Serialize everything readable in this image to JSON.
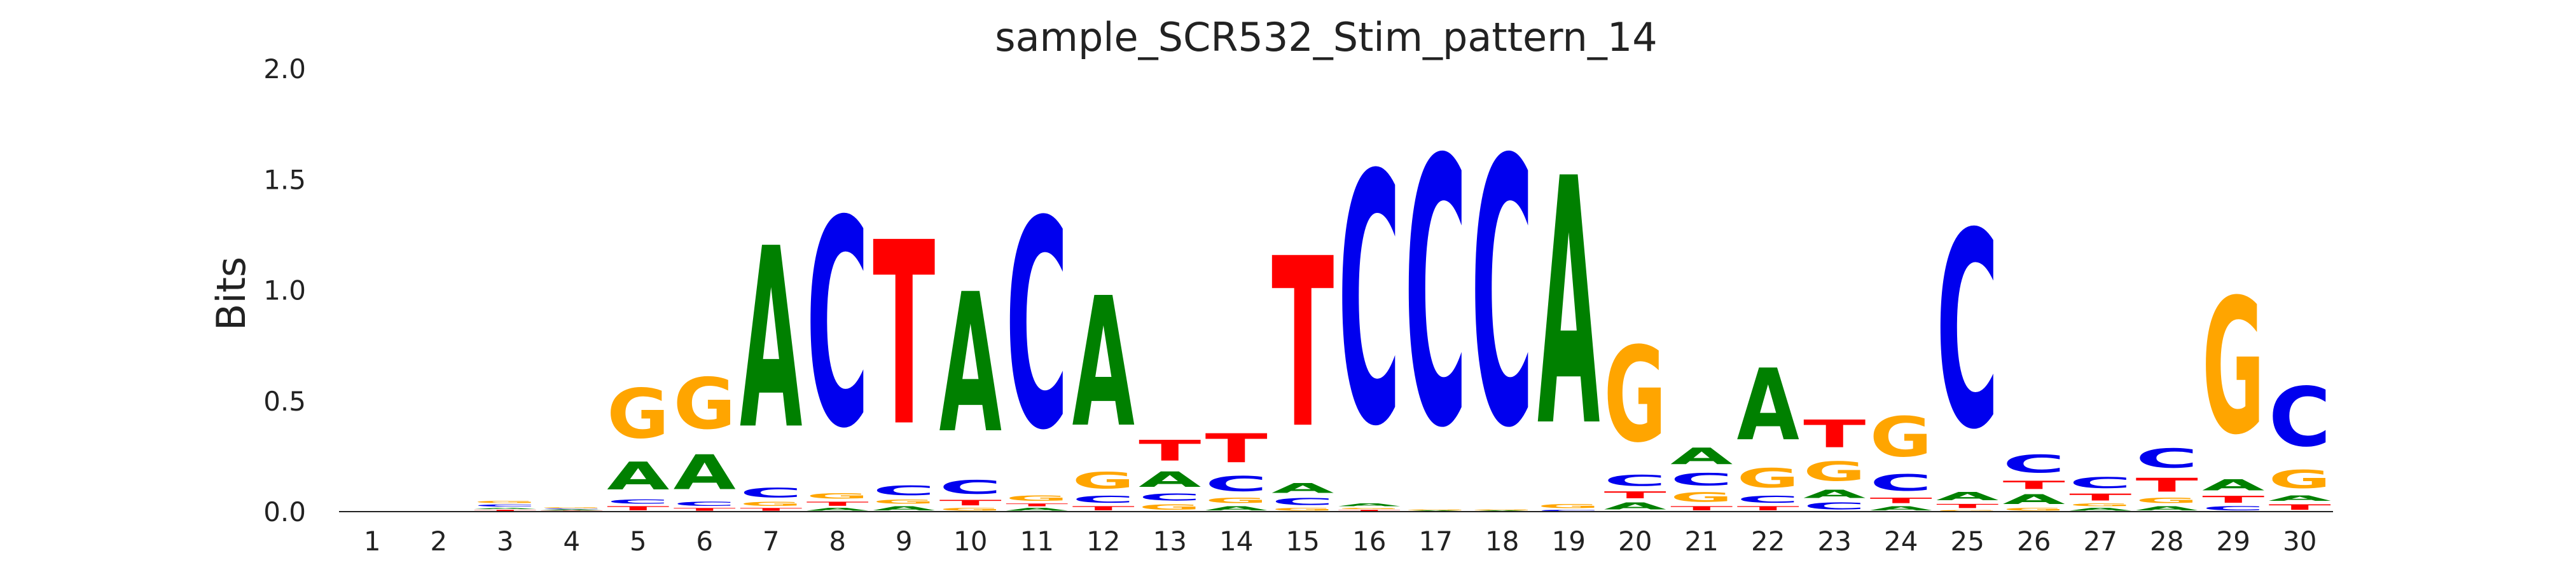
{
  "chart_data": {
    "type": "sequence-logo",
    "title": "sample_SCR532_Stim_pattern_14",
    "xlabel": "",
    "ylabel": "Bits",
    "ylim": [
      0,
      2.0
    ],
    "yticks": [
      0.0,
      0.5,
      1.0,
      1.5,
      2.0
    ],
    "grid": false,
    "colors": {
      "A": "#008000",
      "C": "#0000ee",
      "G": "#ffa500",
      "T": "#ff0000"
    },
    "positions": [
      {
        "pos": 1,
        "stack": []
      },
      {
        "pos": 2,
        "stack": []
      },
      {
        "pos": 3,
        "stack": [
          [
            "T",
            0.01
          ],
          [
            "A",
            0.01
          ],
          [
            "C",
            0.015
          ],
          [
            "G",
            0.015
          ]
        ]
      },
      {
        "pos": 4,
        "stack": [
          [
            "T",
            0.005
          ],
          [
            "A",
            0.005
          ],
          [
            "C",
            0.005
          ],
          [
            "G",
            0.005
          ]
        ]
      },
      {
        "pos": 5,
        "stack": [
          [
            "T",
            0.03
          ],
          [
            "C",
            0.03
          ],
          [
            "A",
            0.2
          ],
          [
            "G",
            0.36
          ]
        ]
      },
      {
        "pos": 6,
        "stack": [
          [
            "T",
            0.02
          ],
          [
            "C",
            0.03
          ],
          [
            "A",
            0.25
          ],
          [
            "G",
            0.37
          ]
        ]
      },
      {
        "pos": 7,
        "stack": [
          [
            "T",
            0.02
          ],
          [
            "G",
            0.03
          ],
          [
            "C",
            0.07
          ],
          [
            "A",
            1.31
          ]
        ]
      },
      {
        "pos": 8,
        "stack": [
          [
            "A",
            0.02
          ],
          [
            "T",
            0.03
          ],
          [
            "G",
            0.04
          ],
          [
            "C",
            1.5
          ]
        ]
      },
      {
        "pos": 9,
        "stack": [
          [
            "A",
            0.03
          ],
          [
            "G",
            0.03
          ],
          [
            "C",
            0.07
          ],
          [
            "T",
            1.33
          ]
        ]
      },
      {
        "pos": 10,
        "stack": [
          [
            "G",
            0.02
          ],
          [
            "T",
            0.04
          ],
          [
            "C",
            0.1
          ],
          [
            "A",
            1.01
          ]
        ]
      },
      {
        "pos": 11,
        "stack": [
          [
            "A",
            0.02
          ],
          [
            "T",
            0.02
          ],
          [
            "G",
            0.04
          ],
          [
            "C",
            1.51
          ]
        ]
      },
      {
        "pos": 12,
        "stack": [
          [
            "T",
            0.03
          ],
          [
            "C",
            0.05
          ],
          [
            "G",
            0.12
          ],
          [
            "A",
            0.94
          ]
        ]
      },
      {
        "pos": 13,
        "stack": [
          [
            "G",
            0.04
          ],
          [
            "C",
            0.05
          ],
          [
            "A",
            0.11
          ],
          [
            "T",
            0.15
          ]
        ]
      },
      {
        "pos": 14,
        "stack": [
          [
            "A",
            0.03
          ],
          [
            "G",
            0.04
          ],
          [
            "C",
            0.11
          ],
          [
            "T",
            0.21
          ]
        ]
      },
      {
        "pos": 15,
        "stack": [
          [
            "G",
            0.02
          ],
          [
            "C",
            0.05
          ],
          [
            "A",
            0.07
          ],
          [
            "T",
            1.23
          ]
        ]
      },
      {
        "pos": 16,
        "stack": [
          [
            "T",
            0.01
          ],
          [
            "G",
            0.01
          ],
          [
            "A",
            0.02
          ],
          [
            "C",
            1.81
          ]
        ]
      },
      {
        "pos": 17,
        "stack": [
          [
            "A",
            0.005
          ],
          [
            "G",
            0.005
          ],
          [
            "C",
            1.93
          ]
        ]
      },
      {
        "pos": 18,
        "stack": [
          [
            "A",
            0.005
          ],
          [
            "G",
            0.005
          ],
          [
            "C",
            1.93
          ]
        ]
      },
      {
        "pos": 19,
        "stack": [
          [
            "C",
            0.01
          ],
          [
            "G",
            0.03
          ],
          [
            "A",
            1.79
          ]
        ]
      },
      {
        "pos": 20,
        "stack": [
          [
            "A",
            0.05
          ],
          [
            "T",
            0.05
          ],
          [
            "C",
            0.08
          ],
          [
            "G",
            0.69
          ]
        ]
      },
      {
        "pos": 21,
        "stack": [
          [
            "T",
            0.03
          ],
          [
            "G",
            0.07
          ],
          [
            "C",
            0.09
          ],
          [
            "A",
            0.12
          ]
        ]
      },
      {
        "pos": 22,
        "stack": [
          [
            "T",
            0.03
          ],
          [
            "C",
            0.05
          ],
          [
            "G",
            0.14
          ],
          [
            "A",
            0.52
          ]
        ]
      },
      {
        "pos": 23,
        "stack": [
          [
            "C",
            0.05
          ],
          [
            "A",
            0.06
          ],
          [
            "G",
            0.14
          ],
          [
            "T",
            0.2
          ]
        ]
      },
      {
        "pos": 24,
        "stack": [
          [
            "A",
            0.03
          ],
          [
            "T",
            0.04
          ],
          [
            "C",
            0.12
          ],
          [
            "G",
            0.29
          ]
        ]
      },
      {
        "pos": 25,
        "stack": [
          [
            "G",
            0.01
          ],
          [
            "T",
            0.03
          ],
          [
            "A",
            0.06
          ],
          [
            "C",
            1.42
          ]
        ]
      },
      {
        "pos": 26,
        "stack": [
          [
            "G",
            0.02
          ],
          [
            "A",
            0.07
          ],
          [
            "T",
            0.06
          ],
          [
            "C",
            0.13
          ]
        ]
      },
      {
        "pos": 27,
        "stack": [
          [
            "A",
            0.02
          ],
          [
            "G",
            0.02
          ],
          [
            "T",
            0.05
          ],
          [
            "C",
            0.08
          ]
        ]
      },
      {
        "pos": 28,
        "stack": [
          [
            "A",
            0.03
          ],
          [
            "G",
            0.04
          ],
          [
            "T",
            0.1
          ],
          [
            "C",
            0.14
          ]
        ]
      },
      {
        "pos": 29,
        "stack": [
          [
            "C",
            0.03
          ],
          [
            "T",
            0.05
          ],
          [
            "A",
            0.08
          ],
          [
            "G",
            0.98
          ]
        ]
      },
      {
        "pos": 30,
        "stack": [
          [
            "T",
            0.04
          ],
          [
            "A",
            0.04
          ],
          [
            "G",
            0.13
          ],
          [
            "C",
            0.43
          ]
        ]
      }
    ]
  }
}
